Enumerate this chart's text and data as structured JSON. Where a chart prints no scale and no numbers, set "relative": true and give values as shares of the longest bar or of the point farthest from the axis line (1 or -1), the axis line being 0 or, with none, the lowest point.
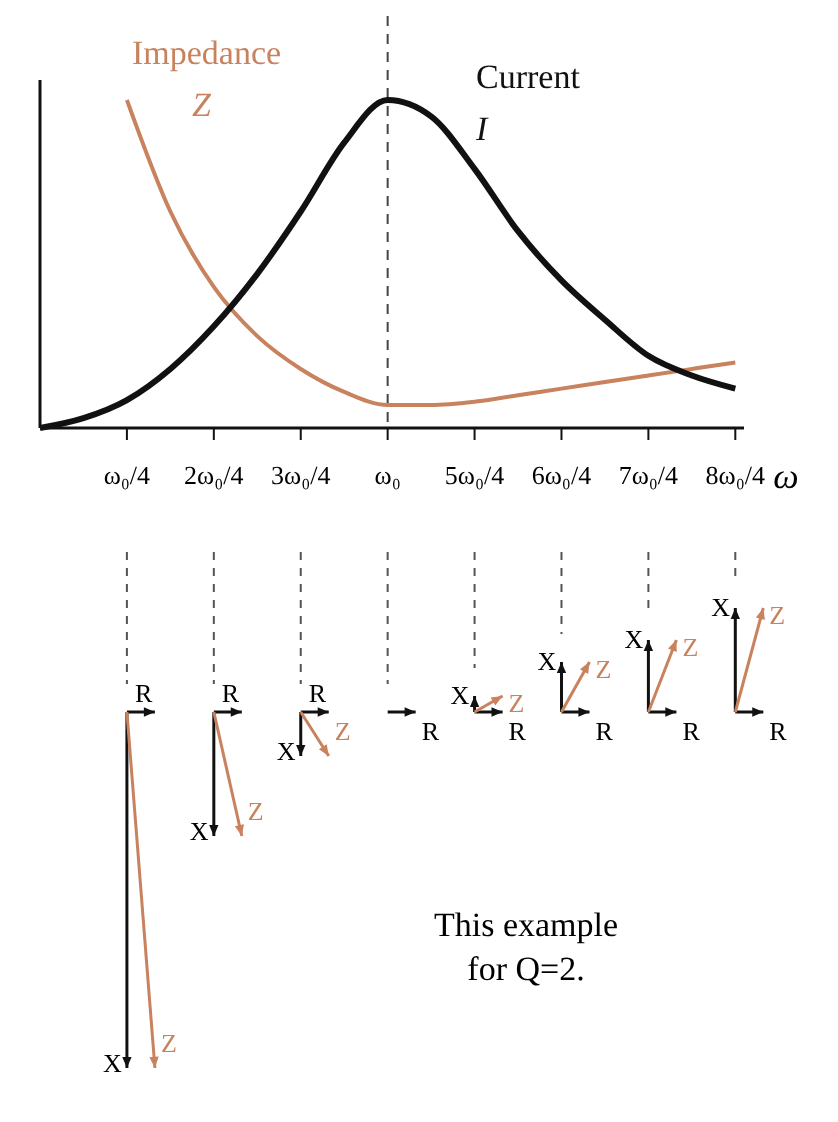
{
  "chart_data": {
    "type": "line",
    "relative": true,
    "xlabel": "ω",
    "categories": [
      null,
      null,
      "ω₀/4",
      null,
      "2ω₀/4",
      null,
      "3ω₀/4",
      null,
      "ω₀",
      null,
      "5ω₀/4",
      null,
      "6ω₀/4",
      null,
      "7ω₀/4",
      null,
      "8ω₀/4"
    ],
    "series": [
      {
        "name": "Impedance Z",
        "color": "#c8825e",
        "values": [
          null,
          null,
          1.0,
          0.66,
          0.43,
          0.28,
          0.18,
          0.11,
          0.07,
          0.07,
          0.08,
          0.1,
          0.12,
          0.14,
          0.16,
          0.18,
          0.2
        ]
      },
      {
        "name": "Current I",
        "color": "#111111",
        "values": [
          0,
          0.03,
          0.085,
          0.18,
          0.31,
          0.47,
          0.66,
          0.87,
          1.0,
          0.95,
          0.79,
          0.6,
          0.45,
          0.33,
          0.22,
          0.16,
          0.12
        ]
      }
    ],
    "ref_lines": [
      {
        "axis": "x",
        "value": "ω₀",
        "line_style": "dashed",
        "color": "#444444"
      }
    ],
    "legend": false,
    "annotations": [
      "This example for Q=2.",
      "R",
      "X",
      "Z"
    ]
  }
}
